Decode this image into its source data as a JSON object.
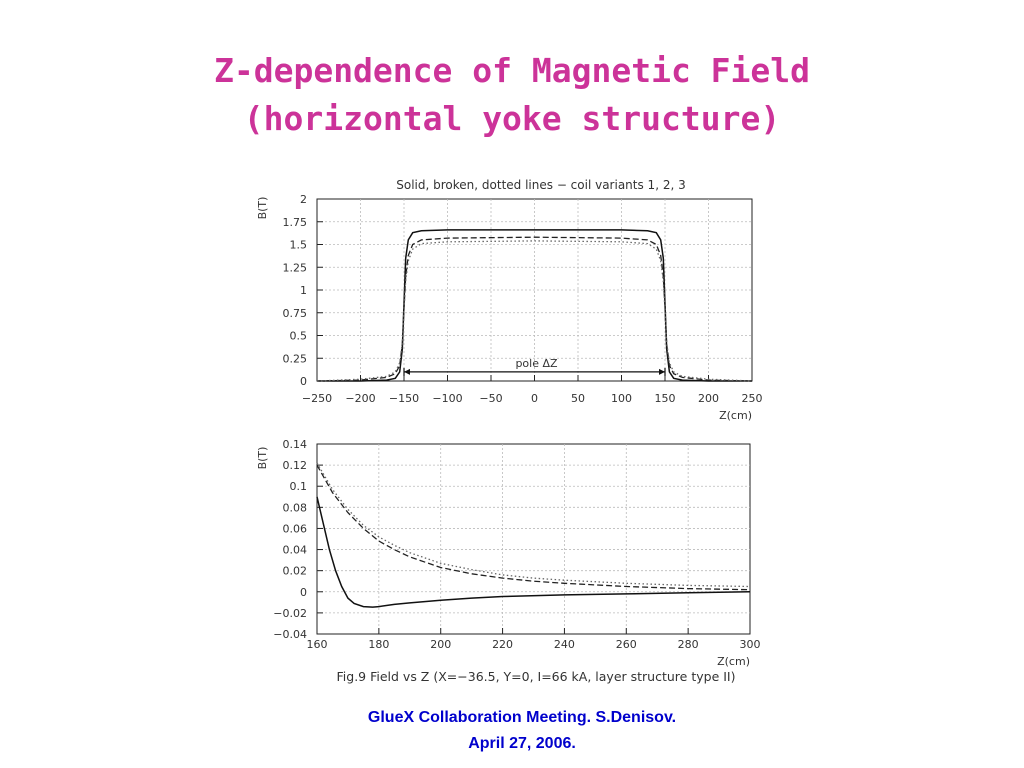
{
  "slide": {
    "title_line1": "Z-dependence of Magnetic Field",
    "title_line2": "(horizontal yoke structure)",
    "footer_line1": "GlueX Collaboration Meeting. S.Denisov.",
    "footer_line2": "April 27, 2006.",
    "title_color": "#cc3399",
    "footer_color": "#0000cc"
  },
  "figure": {
    "caption": "Fig.9 Field vs Z (X=−36.5, Y=0, I=66 kA, layer structure type II)"
  },
  "chart_data": [
    {
      "type": "line",
      "title": "Solid, broken, dotted lines − coil variants 1, 2, 3",
      "xlabel": "Z(cm)",
      "ylabel": "B(T)",
      "xlim": [
        -250,
        250
      ],
      "ylim": [
        0,
        2
      ],
      "xticks": [
        "−250",
        "−200",
        "−150",
        "−100",
        "−50",
        "0",
        "50",
        "100",
        "150",
        "200",
        "250"
      ],
      "yticks": [
        "0",
        "0.25",
        "0.5",
        "0.75",
        "1",
        "1.25",
        "1.5",
        "1.75",
        "2"
      ],
      "grid": true,
      "annotation": "pole ΔZ",
      "annotation_span": [
        -150,
        150
      ],
      "series": [
        {
          "style": "solid",
          "x": [
            -250,
            -200,
            -170,
            -160,
            -155,
            -152,
            -150,
            -148,
            -145,
            -140,
            -130,
            -100,
            0,
            100,
            130,
            140,
            145,
            148,
            150,
            152,
            155,
            160,
            170,
            200,
            250
          ],
          "y": [
            0,
            0,
            0.01,
            0.03,
            0.1,
            0.35,
            0.85,
            1.35,
            1.55,
            1.63,
            1.65,
            1.66,
            1.66,
            1.66,
            1.65,
            1.63,
            1.55,
            1.35,
            0.85,
            0.35,
            0.1,
            0.03,
            0.01,
            0,
            0
          ]
        },
        {
          "style": "dashed",
          "x": [
            -250,
            -200,
            -170,
            -160,
            -155,
            -152,
            -150,
            -148,
            -145,
            -140,
            -130,
            -100,
            0,
            100,
            130,
            140,
            145,
            148,
            150,
            152,
            155,
            160,
            170,
            200,
            250
          ],
          "y": [
            0,
            0.01,
            0.04,
            0.08,
            0.17,
            0.4,
            0.8,
            1.15,
            1.38,
            1.5,
            1.55,
            1.57,
            1.58,
            1.57,
            1.55,
            1.5,
            1.38,
            1.15,
            0.8,
            0.4,
            0.17,
            0.08,
            0.04,
            0.01,
            0
          ]
        },
        {
          "style": "dotted",
          "x": [
            -250,
            -200,
            -170,
            -160,
            -155,
            -152,
            -150,
            -148,
            -145,
            -140,
            -130,
            -100,
            0,
            100,
            130,
            140,
            145,
            148,
            150,
            152,
            155,
            160,
            170,
            200,
            250
          ],
          "y": [
            0,
            0.02,
            0.05,
            0.1,
            0.2,
            0.42,
            0.78,
            1.1,
            1.32,
            1.45,
            1.51,
            1.53,
            1.54,
            1.53,
            1.51,
            1.45,
            1.32,
            1.1,
            0.78,
            0.42,
            0.2,
            0.1,
            0.05,
            0.02,
            0
          ]
        }
      ]
    },
    {
      "type": "line",
      "xlabel": "Z(cm)",
      "ylabel": "B(T)",
      "xlim": [
        160,
        300
      ],
      "ylim": [
        -0.04,
        0.14
      ],
      "xticks": [
        "160",
        "180",
        "200",
        "220",
        "240",
        "260",
        "280",
        "300"
      ],
      "yticks": [
        "−0.04",
        "−0.02",
        "0",
        "0.02",
        "0.04",
        "0.06",
        "0.08",
        "0.1",
        "0.12",
        "0.14"
      ],
      "grid": true,
      "series": [
        {
          "style": "solid",
          "x": [
            160,
            162,
            164,
            166,
            168,
            170,
            172,
            175,
            178,
            180,
            185,
            190,
            200,
            210,
            220,
            240,
            260,
            280,
            300
          ],
          "y": [
            0.09,
            0.065,
            0.04,
            0.02,
            0.005,
            -0.006,
            -0.011,
            -0.014,
            -0.0145,
            -0.014,
            -0.012,
            -0.0105,
            -0.008,
            -0.006,
            -0.0045,
            -0.003,
            -0.002,
            -0.001,
            0
          ]
        },
        {
          "style": "dashed",
          "x": [
            160,
            165,
            170,
            175,
            180,
            185,
            190,
            200,
            210,
            220,
            230,
            240,
            260,
            280,
            300
          ],
          "y": [
            0.12,
            0.094,
            0.075,
            0.06,
            0.048,
            0.04,
            0.033,
            0.023,
            0.017,
            0.013,
            0.01,
            0.008,
            0.005,
            0.003,
            0.002
          ]
        },
        {
          "style": "dotted",
          "x": [
            160,
            165,
            170,
            175,
            180,
            185,
            190,
            200,
            210,
            220,
            230,
            240,
            260,
            280,
            300
          ],
          "y": [
            0.122,
            0.097,
            0.078,
            0.063,
            0.052,
            0.044,
            0.037,
            0.027,
            0.021,
            0.016,
            0.013,
            0.011,
            0.008,
            0.006,
            0.005
          ]
        }
      ]
    }
  ]
}
